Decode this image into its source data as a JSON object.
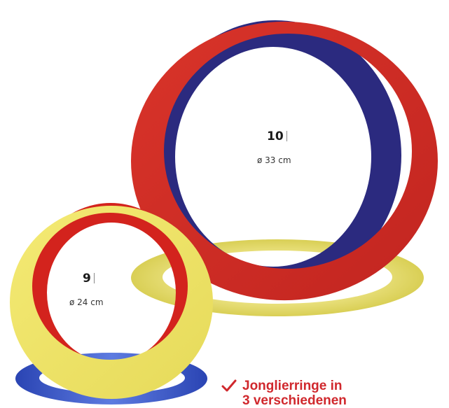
{
  "colors": {
    "red": "#cd2b25",
    "navy": "#2b2a7f",
    "yellow": "#efe46a",
    "blue": "#2948b8",
    "accent_text": "#d0282d"
  },
  "rings": [
    {
      "id": "ring-10",
      "number": "10",
      "diameter": "ø 33 cm",
      "front_color": "red",
      "back_color": "navy",
      "base_color": "yellow"
    },
    {
      "id": "ring-9",
      "number": "9",
      "diameter": "ø 24 cm",
      "front_color": "yellow",
      "back_color": "red",
      "base_color": "blue"
    }
  ],
  "feature": {
    "icon": "check-icon",
    "line1": "Jonglierringe in",
    "line2": "3 verschiedenen"
  }
}
